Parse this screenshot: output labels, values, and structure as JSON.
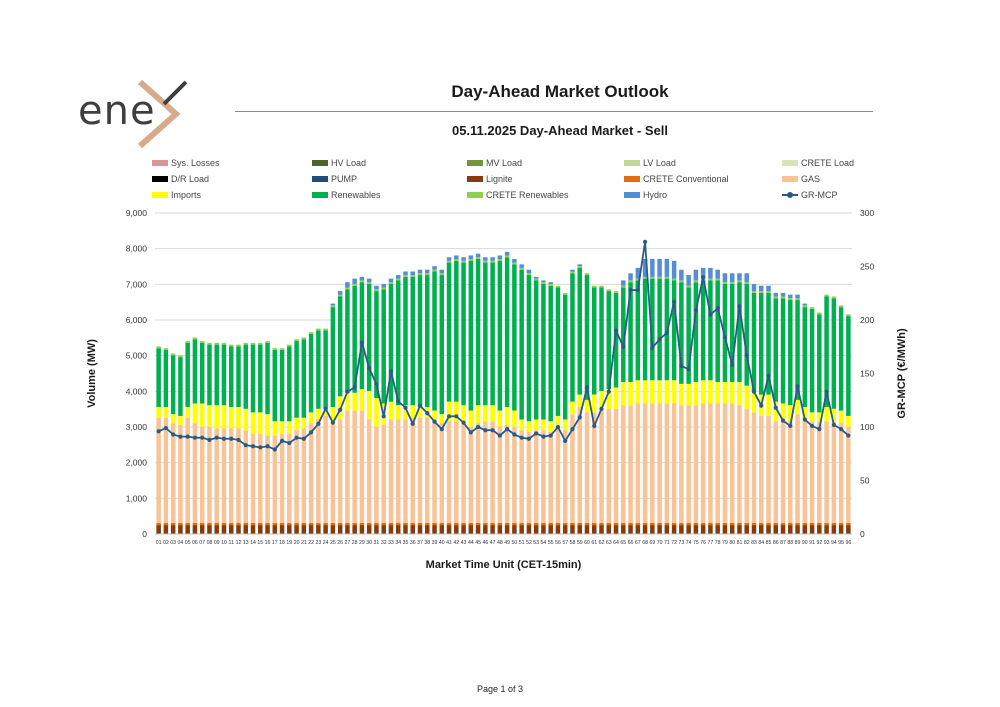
{
  "header": {
    "logo_text": "ene",
    "main_title": "Day-Ahead Market Outlook",
    "subtitle": "05.11.2025  Day-Ahead Market - Sell"
  },
  "footer": {
    "page_label": "Page 1 of 3"
  },
  "colors": {
    "sys_losses": "#d99694",
    "hv_load": "#4f6228",
    "mv_load": "#77933c",
    "lv_load": "#c3d69b",
    "crete_load": "#d7e4bd",
    "dr_load": "#000000",
    "pump": "#1f4e79",
    "lignite": "#843c0c",
    "crete_conventional": "#e46c0a",
    "gas": "#f8c396",
    "imports": "#ffff00",
    "renewables": "#00b050",
    "crete_renewables": "#92d050",
    "hydro": "#558ed5",
    "gr_mcp": "#2a5b86"
  },
  "chart_data": {
    "type": "bar",
    "title": "05.11.2025  Day-Ahead Market - Sell",
    "xlabel": "Market Time Unit (CET-15min)",
    "ylabel": "Volume (MW)",
    "y2label": "GR-MCP (€/MWh)",
    "ylim": [
      0,
      9000
    ],
    "y2lim": [
      0,
      300
    ],
    "yticks": [
      "0",
      "1,000",
      "2,000",
      "3,000",
      "4,000",
      "5,000",
      "6,000",
      "7,000",
      "8,000",
      "9,000"
    ],
    "y2ticks": [
      "0",
      "50",
      "100",
      "150",
      "200",
      "250",
      "300"
    ],
    "categories": [
      "01",
      "02",
      "03",
      "04",
      "05",
      "06",
      "07",
      "08",
      "09",
      "10",
      "11",
      "12",
      "13",
      "14",
      "15",
      "16",
      "17",
      "18",
      "19",
      "20",
      "21",
      "22",
      "23",
      "24",
      "25",
      "26",
      "27",
      "28",
      "29",
      "30",
      "31",
      "32",
      "33",
      "34",
      "35",
      "36",
      "37",
      "38",
      "39",
      "40",
      "41",
      "42",
      "43",
      "44",
      "45",
      "46",
      "47",
      "48",
      "49",
      "50",
      "51",
      "52",
      "53",
      "54",
      "55",
      "56",
      "57",
      "58",
      "59",
      "60",
      "61",
      "62",
      "63",
      "64",
      "65",
      "66",
      "67",
      "68",
      "69",
      "70",
      "71",
      "72",
      "73",
      "74",
      "75",
      "76",
      "77",
      "78",
      "79",
      "80",
      "81",
      "82",
      "83",
      "84",
      "85",
      "86",
      "87",
      "88",
      "89",
      "90",
      "91",
      "92",
      "93",
      "94",
      "95",
      "96"
    ],
    "legend": [
      "Sys. Losses",
      "HV Load",
      "MV Load",
      "LV Load",
      "CRETE Load",
      "D/R Load",
      "PUMP",
      "Lignite",
      "CRETE Conventional",
      "GAS",
      "Imports",
      "Renewables",
      "CRETE Renewables",
      "Hydro",
      "GR-MCP"
    ],
    "series": [
      {
        "name": "Lignite",
        "values": [
          250,
          250,
          250,
          250,
          250,
          250,
          250,
          250,
          250,
          250,
          250,
          250,
          250,
          250,
          250,
          250,
          250,
          250,
          250,
          250,
          250,
          250,
          250,
          250,
          250,
          250,
          250,
          250,
          250,
          250,
          250,
          250,
          250,
          250,
          250,
          250,
          250,
          250,
          250,
          250,
          250,
          250,
          250,
          250,
          250,
          250,
          250,
          250,
          250,
          250,
          250,
          250,
          250,
          250,
          250,
          250,
          250,
          250,
          250,
          250,
          250,
          250,
          250,
          250,
          250,
          250,
          250,
          250,
          250,
          250,
          250,
          250,
          250,
          250,
          250,
          250,
          250,
          250,
          250,
          250,
          250,
          250,
          250,
          250,
          250,
          250,
          250,
          250,
          250,
          250,
          250,
          250,
          250,
          250,
          250,
          250
        ]
      },
      {
        "name": "CRETE Conventional",
        "values": [
          60,
          60,
          60,
          60,
          60,
          60,
          60,
          60,
          60,
          60,
          60,
          60,
          60,
          60,
          60,
          60,
          60,
          60,
          60,
          60,
          60,
          60,
          60,
          60,
          60,
          60,
          60,
          60,
          60,
          60,
          60,
          60,
          60,
          60,
          60,
          60,
          60,
          60,
          60,
          60,
          60,
          60,
          60,
          60,
          60,
          60,
          60,
          60,
          60,
          60,
          60,
          60,
          60,
          60,
          60,
          60,
          60,
          60,
          60,
          60,
          60,
          60,
          60,
          60,
          60,
          60,
          60,
          60,
          60,
          60,
          60,
          60,
          60,
          60,
          60,
          60,
          60,
          60,
          60,
          60,
          60,
          60,
          60,
          60,
          60,
          60,
          60,
          60,
          60,
          60,
          60,
          60,
          60,
          60,
          60,
          60
        ]
      },
      {
        "name": "GAS",
        "values": [
          2950,
          2950,
          2800,
          2750,
          2950,
          2800,
          2700,
          2700,
          2650,
          2650,
          2650,
          2650,
          2600,
          2500,
          2500,
          2450,
          2450,
          2500,
          2500,
          2600,
          2650,
          2800,
          2900,
          3000,
          2750,
          2900,
          3150,
          3150,
          3150,
          2900,
          2700,
          2750,
          2900,
          2900,
          2900,
          2950,
          2950,
          2950,
          2900,
          2800,
          2850,
          2850,
          2750,
          2700,
          2800,
          2850,
          2850,
          2700,
          2750,
          2700,
          2600,
          2550,
          2600,
          2600,
          2550,
          2700,
          2600,
          3050,
          3250,
          3100,
          3100,
          3150,
          3200,
          3200,
          3300,
          3300,
          3350,
          3350,
          3350,
          3350,
          3350,
          3350,
          3300,
          3300,
          3300,
          3350,
          3350,
          3350,
          3350,
          3350,
          3300,
          3200,
          3100,
          3000,
          3000,
          2850,
          2850,
          2850,
          3050,
          2900,
          2850,
          2850,
          2850,
          2850,
          2800,
          2700
        ]
      },
      {
        "name": "Imports",
        "values": [
          300,
          300,
          250,
          250,
          300,
          550,
          650,
          600,
          650,
          650,
          600,
          600,
          600,
          600,
          600,
          600,
          400,
          350,
          350,
          350,
          300,
          300,
          300,
          200,
          500,
          650,
          500,
          500,
          600,
          800,
          800,
          600,
          500,
          400,
          400,
          350,
          300,
          300,
          250,
          250,
          550,
          550,
          550,
          450,
          500,
          450,
          450,
          450,
          500,
          450,
          300,
          300,
          300,
          300,
          300,
          300,
          300,
          350,
          350,
          350,
          500,
          550,
          550,
          600,
          650,
          650,
          650,
          650,
          650,
          650,
          650,
          650,
          600,
          600,
          650,
          650,
          650,
          600,
          600,
          600,
          650,
          650,
          600,
          600,
          600,
          550,
          500,
          450,
          400,
          350,
          250,
          250,
          400,
          350,
          350,
          300
        ]
      },
      {
        "name": "Renewables",
        "values": [
          1650,
          1600,
          1650,
          1650,
          1800,
          1800,
          1700,
          1700,
          1700,
          1700,
          1700,
          1700,
          1800,
          1900,
          1900,
          2000,
          2000,
          2000,
          2100,
          2150,
          2200,
          2200,
          2200,
          2200,
          2800,
          2800,
          2900,
          3000,
          3000,
          3000,
          3000,
          3200,
          3300,
          3500,
          3600,
          3600,
          3700,
          3700,
          3900,
          3900,
          3900,
          3950,
          4000,
          4200,
          4100,
          4000,
          4000,
          4200,
          4200,
          4100,
          4200,
          4100,
          3900,
          3800,
          3800,
          3600,
          3500,
          3600,
          3550,
          3500,
          3000,
          2900,
          2750,
          2650,
          2650,
          2800,
          2800,
          2850,
          2850,
          2850,
          2850,
          2800,
          2850,
          2700,
          2800,
          2800,
          2800,
          2850,
          2750,
          2750,
          2800,
          2850,
          2750,
          2850,
          2850,
          2900,
          2950,
          2950,
          2800,
          2800,
          2900,
          2750,
          3100,
          3100,
          2900,
          2800
        ]
      },
      {
        "name": "CRETE Renewables",
        "values": [
          50,
          50,
          50,
          50,
          50,
          50,
          50,
          50,
          50,
          50,
          50,
          50,
          50,
          50,
          50,
          50,
          50,
          50,
          50,
          50,
          50,
          50,
          50,
          50,
          50,
          50,
          50,
          50,
          50,
          50,
          50,
          50,
          50,
          50,
          50,
          50,
          50,
          50,
          50,
          50,
          50,
          50,
          50,
          50,
          50,
          50,
          50,
          50,
          50,
          50,
          50,
          50,
          50,
          50,
          50,
          50,
          50,
          50,
          50,
          50,
          50,
          50,
          50,
          50,
          50,
          50,
          50,
          50,
          50,
          50,
          50,
          50,
          50,
          50,
          50,
          50,
          50,
          50,
          50,
          50,
          50,
          50,
          50,
          50,
          50,
          50,
          50,
          50,
          50,
          50,
          50,
          50,
          50,
          50,
          50,
          50
        ]
      },
      {
        "name": "Hydro",
        "values": [
          0,
          0,
          0,
          0,
          0,
          0,
          0,
          0,
          0,
          0,
          0,
          0,
          0,
          0,
          0,
          0,
          0,
          0,
          0,
          0,
          0,
          0,
          0,
          0,
          50,
          100,
          150,
          150,
          100,
          100,
          100,
          100,
          100,
          100,
          100,
          100,
          100,
          100,
          100,
          100,
          100,
          100,
          100,
          100,
          100,
          100,
          100,
          100,
          100,
          100,
          100,
          100,
          50,
          50,
          50,
          0,
          0,
          50,
          50,
          0,
          0,
          0,
          0,
          0,
          150,
          200,
          300,
          500,
          500,
          500,
          500,
          500,
          300,
          300,
          300,
          300,
          300,
          250,
          250,
          250,
          200,
          250,
          200,
          150,
          150,
          100,
          100,
          100,
          100,
          50,
          0,
          0,
          0,
          0,
          0,
          0
        ]
      },
      {
        "name": "GR-MCP",
        "axis": "secondary",
        "values": [
          96,
          99,
          93,
          91,
          91,
          90,
          90,
          88,
          90,
          89,
          89,
          88,
          83,
          82,
          81,
          82,
          79,
          87,
          85,
          90,
          89,
          95,
          103,
          117,
          104,
          116,
          133,
          137,
          179,
          155,
          140,
          110,
          152,
          124,
          118,
          103,
          120,
          113,
          105,
          98,
          110,
          110,
          104,
          95,
          100,
          97,
          97,
          92,
          98,
          93,
          90,
          89,
          94,
          91,
          92,
          100,
          87,
          98,
          109,
          137,
          101,
          117,
          133,
          190,
          175,
          228,
          228,
          273,
          174,
          182,
          188,
          217,
          157,
          154,
          209,
          240,
          205,
          211,
          184,
          158,
          213,
          167,
          133,
          120,
          148,
          118,
          106,
          101,
          138,
          107,
          101,
          98,
          133,
          102,
          98,
          92
        ]
      }
    ]
  }
}
